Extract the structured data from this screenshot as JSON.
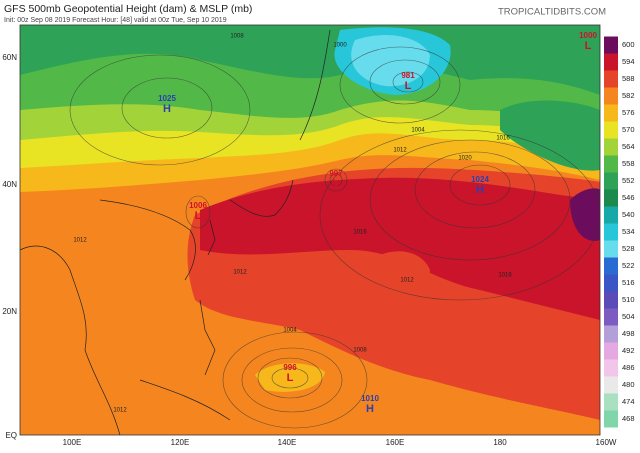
{
  "header": {
    "title": "GFS 500mb Geopotential Height (dam) & MSLP (mb)",
    "subtitle": "Init: 00z Sep 08 2019   Forecast Hour: [48]   valid at 00z Tue, Sep 10 2019",
    "site": "TROPICALTIDBITS.COM"
  },
  "lat_labels": [
    "60N",
    "40N",
    "20N",
    "EQ"
  ],
  "lon_labels": [
    "100E",
    "120E",
    "140E",
    "160E",
    "180",
    "160W"
  ],
  "colorbar": {
    "labels": [
      600,
      594,
      588,
      582,
      576,
      570,
      564,
      558,
      552,
      546,
      540,
      534,
      528,
      522,
      516,
      510,
      504,
      498,
      492,
      486,
      480,
      474,
      468
    ],
    "colors": [
      "#6b0d5c",
      "#c9142c",
      "#e5432a",
      "#f5861f",
      "#f7b81c",
      "#e8e423",
      "#a2d43a",
      "#52b848",
      "#2ea357",
      "#1c8a4d",
      "#17a9a8",
      "#27c6d8",
      "#66dced",
      "#2a6bd3",
      "#3a55c6",
      "#5a4bb6",
      "#7c5cc0",
      "#b3a0d8",
      "#e5a8e0",
      "#f2c6ea",
      "#e9e9e9",
      "#a8e0c0",
      "#80d6a8"
    ]
  },
  "centers": [
    {
      "type": "H",
      "pressure": 1025,
      "color": "#2a3fb0"
    },
    {
      "type": "L",
      "pressure": 981,
      "color": "#d0102a"
    },
    {
      "type": "L",
      "pressure": 997,
      "color": "#d0102a"
    },
    {
      "type": "H",
      "pressure": 1024,
      "color": "#2a3fb0"
    },
    {
      "type": "L",
      "pressure": 1006,
      "color": "#d0102a"
    },
    {
      "type": "L",
      "pressure": 996,
      "color": "#d0102a"
    },
    {
      "type": "H",
      "pressure": 1010,
      "color": "#2a3fb0"
    },
    {
      "type": "L",
      "pressure": 1000,
      "color": "#d0102a"
    }
  ],
  "isobar_labels": [
    1008,
    1000,
    1004,
    1016,
    1012,
    1016,
    1012,
    1012,
    1016,
    1004,
    1008,
    1012,
    1012,
    1020
  ]
}
